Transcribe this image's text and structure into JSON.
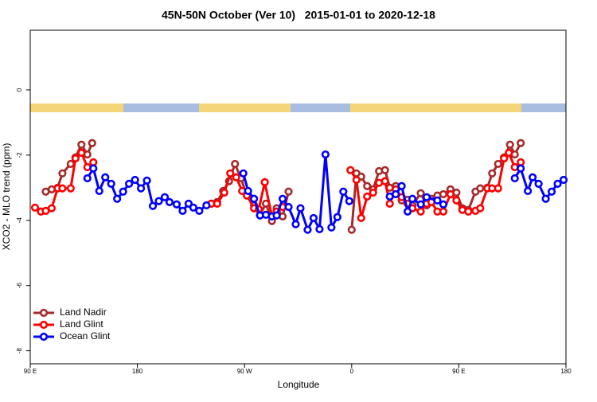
{
  "chart_data": {
    "type": "line",
    "title": "45N-50N October (Ver 10)   2015-01-01 to 2020-12-18",
    "xlabel": "Longitude",
    "ylabel": "XCO2 - MLO trend (ppm)",
    "xlim": [
      90,
      540
    ],
    "xticks": [
      {
        "value": 90,
        "label": "90 E"
      },
      {
        "value": 180,
        "label": "180"
      },
      {
        "value": 270,
        "label": "90 W"
      },
      {
        "value": 360,
        "label": "0"
      },
      {
        "value": 450,
        "label": "90 E"
      },
      {
        "value": 540,
        "label": "180"
      }
    ],
    "ylim": [
      -8.4,
      1.83
    ],
    "yticks": [
      0,
      -2,
      -4,
      -6,
      -8
    ],
    "legend": "bottomleft",
    "series": [
      {
        "name": "Land Nadir",
        "color": "#a52a2a",
        "x": [
          103,
          108,
          113,
          117,
          124,
          128,
          133,
          138,
          142,
          null,
          242,
          247,
          252,
          257,
          262,
          267,
          272,
          278,
          283,
          288,
          293,
          297,
          302,
          307,
          null,
          360,
          364,
          368,
          373,
          378,
          383,
          388,
          392,
          397,
          402,
          407,
          411,
          418,
          423,
          427,
          432,
          437,
          443,
          448,
          453,
          458,
          464,
          468,
          474,
          478,
          483,
          488,
          493,
          497,
          502
        ],
        "values": [
          -3.12,
          -3.05,
          -3.0,
          -2.56,
          -2.27,
          -2.07,
          -1.68,
          -1.98,
          -1.63,
          null,
          -3.49,
          -3.44,
          -3.1,
          -2.8,
          -2.27,
          -2.71,
          -3.24,
          -3.54,
          -3.83,
          -3.49,
          -4.02,
          -3.63,
          -3.88,
          -3.12,
          null,
          -4.29,
          -2.56,
          -2.66,
          -2.95,
          -3.05,
          -2.49,
          -2.46,
          -3.0,
          -2.95,
          -3.39,
          -3.37,
          -3.54,
          -3.17,
          -3.54,
          -3.34,
          -3.24,
          -3.2,
          -3.05,
          -3.15,
          -3.63,
          -3.68,
          -3.12,
          -3.02,
          -3.0,
          -2.56,
          -2.27,
          -2.07,
          -1.68,
          -1.98,
          -1.63
        ]
      },
      {
        "name": "Land Glint",
        "color": "#ff0000",
        "x": [
          94,
          99,
          103,
          108,
          113,
          117,
          124,
          128,
          133,
          138,
          143,
          null,
          242,
          247,
          253,
          258,
          263,
          268,
          272,
          278,
          282,
          287,
          293,
          297,
          302,
          null,
          359,
          364,
          368,
          373,
          378,
          383,
          388,
          392,
          397,
          402,
          407,
          411,
          418,
          423,
          427,
          432,
          437,
          443,
          448,
          453,
          458,
          464,
          468,
          474,
          478,
          483,
          488,
          492,
          497,
          502
        ],
        "values": [
          -3.61,
          -3.73,
          -3.71,
          -3.63,
          -3.02,
          -3.02,
          -3.02,
          -2.1,
          -1.93,
          -2.37,
          -2.22,
          null,
          -3.49,
          -3.49,
          -3.15,
          -2.56,
          -2.68,
          -3.1,
          -3.24,
          -3.63,
          -3.66,
          -2.83,
          -3.88,
          -3.73,
          -3.59,
          null,
          -2.46,
          -2.76,
          -3.93,
          -3.27,
          -3.15,
          -2.85,
          -2.8,
          -3.49,
          -3.05,
          -3.29,
          -3.49,
          -3.63,
          -3.73,
          -3.49,
          -3.44,
          -3.73,
          -3.73,
          -3.2,
          -3.39,
          -3.68,
          -3.73,
          -3.71,
          -3.63,
          -3.02,
          -3.02,
          -3.02,
          -2.1,
          -1.93,
          -2.37,
          -2.22
        ]
      },
      {
        "name": "Ocean Glint",
        "color": "#0000ff",
        "x": [
          138,
          143,
          148,
          153,
          158,
          163,
          168,
          173,
          178,
          183,
          188,
          193,
          198,
          203,
          207,
          213,
          218,
          223,
          227,
          232,
          238,
          null,
          269,
          273,
          278,
          283,
          288,
          293,
          297,
          302,
          307,
          313,
          317,
          323,
          328,
          333,
          338,
          343,
          348,
          353,
          358,
          null,
          392,
          397,
          402,
          407,
          411,
          418,
          423,
          432,
          437,
          null,
          497,
          502,
          508,
          512,
          517,
          523,
          528,
          533,
          538
        ],
        "values": [
          -2.71,
          -2.41,
          -3.1,
          -2.68,
          -2.88,
          -3.34,
          -3.12,
          -2.88,
          -2.76,
          -3.02,
          -2.78,
          -3.56,
          -3.41,
          -3.29,
          -3.44,
          -3.51,
          -3.71,
          -3.49,
          -3.61,
          -3.71,
          -3.54,
          null,
          -2.56,
          -3.1,
          -3.34,
          -3.85,
          -3.83,
          -3.88,
          -3.85,
          -3.34,
          -3.59,
          -4.12,
          -3.63,
          -4.29,
          -3.93,
          -4.27,
          -1.98,
          -4.22,
          -3.9,
          -3.12,
          -3.41,
          null,
          -3.27,
          -3.2,
          -2.95,
          -3.73,
          -3.34,
          -3.51,
          -3.29,
          -3.39,
          -3.51,
          null,
          -2.71,
          -2.41,
          -3.1,
          -2.68,
          -2.88,
          -3.34,
          -3.12,
          -2.88,
          -2.76
        ]
      }
    ]
  }
}
